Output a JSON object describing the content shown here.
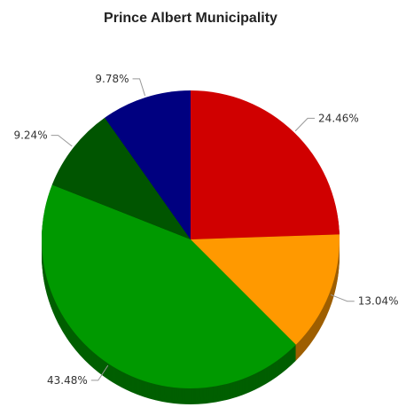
{
  "chart_data": {
    "type": "pie",
    "title": "Prince Albert Municipality",
    "slices": [
      {
        "label": "24.46%",
        "value": 24.46,
        "color": "#d00000"
      },
      {
        "label": "13.04%",
        "value": 13.04,
        "color": "#ff9900"
      },
      {
        "label": "43.48%",
        "value": 43.48,
        "color": "#009900"
      },
      {
        "label": "9.24%",
        "value": 9.24,
        "color": "#005500"
      },
      {
        "label": "9.78%",
        "value": 9.78,
        "color": "#000080"
      }
    ],
    "start_position": "top",
    "direction": "clockwise",
    "style": "3d"
  }
}
